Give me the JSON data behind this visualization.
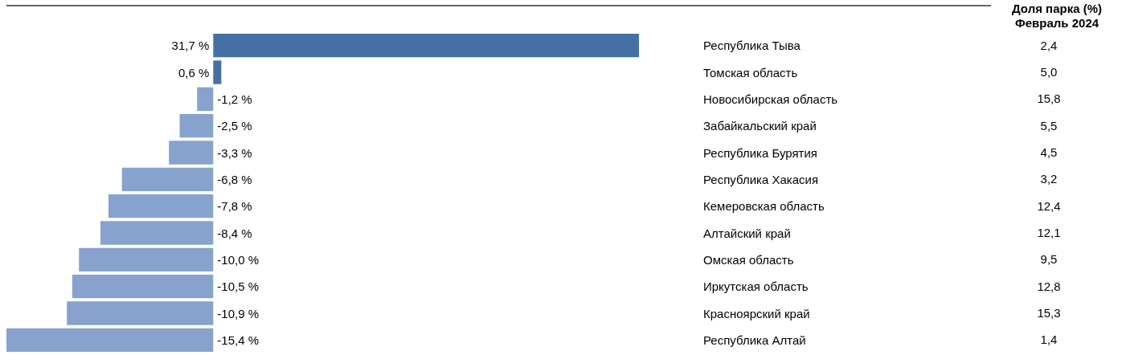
{
  "chart_data": [
    {
      "type": "bar",
      "orientation": "horizontal",
      "categories": [
        "Республика Тыва",
        "Томская область",
        "Новосибирская область",
        "Забайкальский край",
        "Республика Бурятия",
        "Республика Хакасия",
        "Кемеровская область",
        "Алтайский край",
        "Омская область",
        "Иркутская область",
        "Красноярский край",
        "Республика Алтай"
      ],
      "values": [
        31.7,
        0.6,
        -1.2,
        -2.5,
        -3.3,
        -6.8,
        -7.8,
        -8.4,
        -10.0,
        -10.5,
        -10.9,
        -15.4
      ],
      "colors": [
        "#4470a6",
        "#4470a6",
        "#87a2cc",
        "#87a2cc",
        "#87a2cc",
        "#87a2cc",
        "#87a2cc",
        "#87a2cc",
        "#87a2cc",
        "#87a2cc",
        "#87a2cc",
        "#87a2cc"
      ],
      "value_labels": [
        "31,7 %",
        "0,6 %",
        "-1,2 %",
        "-2,5 %",
        "-3,3 %",
        "-6,8 %",
        "-7,8 %",
        "-8,4 %",
        "-10,0 %",
        "-10,5 %",
        "-10,9 %",
        "-15,4 %"
      ],
      "xlim": [
        -15.4,
        31.7
      ],
      "tick_labels": "y"
    },
    {
      "type": "other",
      "title": "Доля парка (%)",
      "subtitle": "Февраль 2024",
      "annotations": [
        "2,4",
        "5,0",
        "15,8",
        "5,5",
        "4,5",
        "3,2",
        "12,4",
        "12,1",
        "9,5",
        "12,8",
        "15,3",
        "1,4"
      ]
    }
  ]
}
